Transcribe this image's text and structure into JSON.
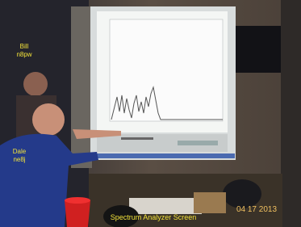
{
  "labels": [
    {
      "lines": [
        "Bill",
        "n8pw"
      ]
    },
    {
      "lines": [
        "Dale",
        "ne8j"
      ]
    }
  ],
  "caption": "Spectrum Analyzer Screen",
  "date": "04 17 2013"
}
